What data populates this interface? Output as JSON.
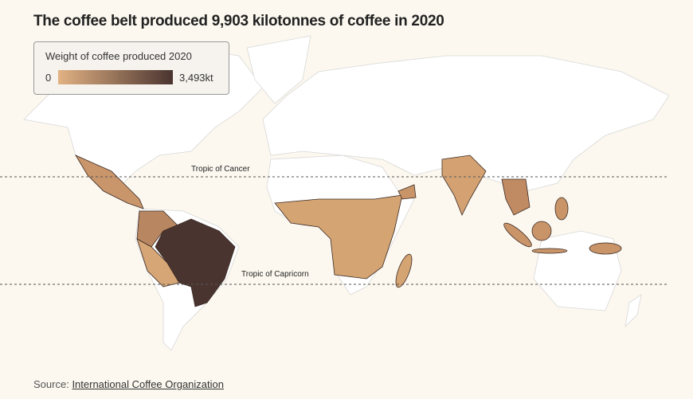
{
  "title": "The coffee belt produced 9,903 kilotonnes of coffee in 2020",
  "legend": {
    "title": "Weight of coffee produced 2020",
    "min": 0,
    "max": {
      "value": 3493,
      "label": "3,493kt"
    },
    "colors": [
      "#e2b283",
      "#4a3430"
    ]
  },
  "annotations": {
    "cancer": "Tropic of Cancer",
    "capricorn": "Tropic of Capricorn"
  },
  "source": {
    "prefix": "Source:",
    "link": "International Coffee Organization"
  }
}
